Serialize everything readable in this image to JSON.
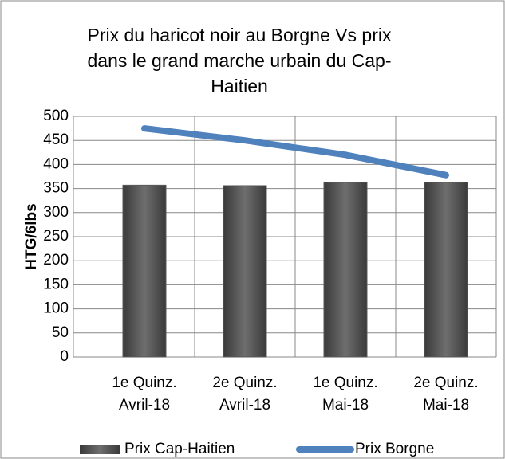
{
  "chart_data": {
    "type": "bar_line",
    "title": [
      "Prix du haricot noir au Borgne Vs prix",
      "dans le grand marche urbain du Cap-",
      "Haitien"
    ],
    "y_axis_label": "HTG/6lbs",
    "categories": [
      [
        "1e Quinz.",
        "Avril-18"
      ],
      [
        "2e Quinz.",
        "Avril-18"
      ],
      [
        "1e Quinz.",
        "Mai-18"
      ],
      [
        "2e Quinz.",
        "Mai-18"
      ]
    ],
    "series": [
      {
        "name": "Prix Cap-Haitien",
        "type": "bar",
        "color": "#595959",
        "values": [
          357,
          356,
          363,
          363
        ]
      },
      {
        "name": "Prix Borgne",
        "type": "line",
        "color": "#4f81bd",
        "values": [
          475,
          450,
          420,
          378
        ]
      }
    ],
    "ylim": [
      0,
      500
    ],
    "yticks": [
      0,
      50,
      100,
      150,
      200,
      250,
      300,
      350,
      400,
      450,
      500
    ],
    "grid": true,
    "legend": "bottom"
  }
}
